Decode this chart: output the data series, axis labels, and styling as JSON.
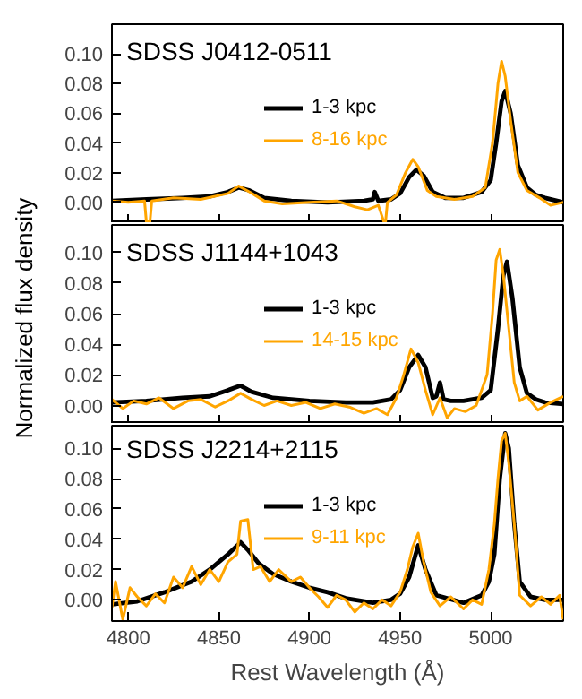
{
  "chart_data": [
    {
      "type": "line",
      "title": "SDSS J0412-0511",
      "xlim": [
        4791,
        5040
      ],
      "xticks": [
        4800,
        4850,
        4900,
        4950,
        5000
      ],
      "ylim": [
        -0.014,
        0.12
      ],
      "yticks": [
        {
          "value": 0,
          "label": "0.00"
        },
        {
          "value": 0.02,
          "label": "0.02"
        },
        {
          "value": 0.04,
          "label": "0.04"
        },
        {
          "value": 0.06,
          "label": "0.06"
        },
        {
          "value": 0.08,
          "label": "0.08"
        },
        {
          "value": 0.1,
          "label": "0.10"
        }
      ],
      "tick_labels": "y",
      "legend": "center",
      "series": [
        {
          "name": "1-3 kpc",
          "color": "#000000",
          "x": [
            4791,
            4810,
            4830,
            4845,
            4855,
            4861,
            4867,
            4875,
            4890,
            4910,
            4930,
            4935,
            4936,
            4938,
            4945,
            4950,
            4955,
            4959,
            4963,
            4968,
            4975,
            4985,
            4995,
            5000,
            5003,
            5006,
            5008,
            5011,
            5015,
            5020,
            5025,
            5030,
            5040
          ],
          "values": [
            0.001,
            0.002,
            0.003,
            0.004,
            0.007,
            0.01,
            0.008,
            0.003,
            0.001,
            0.0,
            0.001,
            0.002,
            0.007,
            0.001,
            0.002,
            0.006,
            0.017,
            0.022,
            0.018,
            0.007,
            0.003,
            0.003,
            0.007,
            0.015,
            0.04,
            0.068,
            0.075,
            0.06,
            0.025,
            0.01,
            0.005,
            0.003,
            0.0
          ]
        },
        {
          "name": "8-16 kpc",
          "color": "#ffa500",
          "x": [
            4791,
            4800,
            4809,
            4810,
            4812,
            4813,
            4825,
            4840,
            4855,
            4861,
            4867,
            4875,
            4885,
            4900,
            4915,
            4925,
            4932,
            4938,
            4941,
            4942,
            4943,
            4948,
            4953,
            4957,
            4960,
            4965,
            4970,
            4980,
            4990,
            4997,
            5001,
            5004,
            5006,
            5008,
            5011,
            5015,
            5020,
            5027,
            5033,
            5040
          ],
          "values": [
            0.001,
            0.0,
            0.001,
            -0.013,
            -0.013,
            0.001,
            0.003,
            0.002,
            0.006,
            0.011,
            0.007,
            0.001,
            -0.001,
            0.0,
            0.001,
            -0.003,
            -0.005,
            -0.002,
            -0.013,
            -0.013,
            0.0,
            0.005,
            0.02,
            0.029,
            0.024,
            0.008,
            0.004,
            0.002,
            0.004,
            0.01,
            0.04,
            0.08,
            0.095,
            0.085,
            0.055,
            0.02,
            0.008,
            0.003,
            -0.002,
            0.0
          ]
        }
      ]
    },
    {
      "type": "line",
      "title": "SDSS J1144+1043",
      "ylabel": "Normalized flux density",
      "xlim": [
        4791,
        5040
      ],
      "xticks": [
        4800,
        4850,
        4900,
        4950,
        5000
      ],
      "ylim": [
        -0.012,
        0.118
      ],
      "yticks": [
        {
          "value": 0,
          "label": "0.00"
        },
        {
          "value": 0.02,
          "label": "0.02"
        },
        {
          "value": 0.04,
          "label": "0.04"
        },
        {
          "value": 0.06,
          "label": "0.06"
        },
        {
          "value": 0.08,
          "label": "0.08"
        },
        {
          "value": 0.1,
          "label": "0.10"
        }
      ],
      "tick_labels": "y",
      "legend": "center",
      "series": [
        {
          "name": "1-3 kpc",
          "color": "#000000",
          "x": [
            4791,
            4810,
            4830,
            4845,
            4855,
            4862,
            4868,
            4880,
            4900,
            4920,
            4935,
            4945,
            4950,
            4955,
            4960,
            4964,
            4968,
            4970,
            4972,
            4974,
            4978,
            4985,
            4995,
            5000,
            5004,
            5007,
            5009,
            5012,
            5016,
            5020,
            5025,
            5030,
            5040
          ],
          "values": [
            0.002,
            0.003,
            0.005,
            0.006,
            0.01,
            0.013,
            0.009,
            0.005,
            0.003,
            0.002,
            0.002,
            0.004,
            0.01,
            0.025,
            0.033,
            0.025,
            0.005,
            0.006,
            0.015,
            0.004,
            0.003,
            0.003,
            0.005,
            0.01,
            0.05,
            0.085,
            0.094,
            0.07,
            0.025,
            0.008,
            0.004,
            0.002,
            0.001
          ]
        },
        {
          "name": "14-15 kpc",
          "color": "#ffa500",
          "x": [
            4791,
            4797,
            4803,
            4810,
            4817,
            4825,
            4833,
            4840,
            4848,
            4855,
            4862,
            4868,
            4875,
            4882,
            4890,
            4898,
            4906,
            4914,
            4922,
            4930,
            4937,
            4943,
            4948,
            4952,
            4956,
            4960,
            4964,
            4968,
            4972,
            4976,
            4980,
            4986,
            4992,
            4998,
            5001,
            5003,
            5005,
            5007,
            5010,
            5013,
            5016,
            5020,
            5026,
            5033,
            5040
          ],
          "values": [
            0.004,
            -0.002,
            0.003,
            0.001,
            0.005,
            -0.002,
            0.003,
            0.004,
            -0.001,
            0.003,
            0.008,
            0.004,
            0.0,
            0.003,
            0.0,
            0.002,
            -0.002,
            0.001,
            -0.001,
            -0.005,
            -0.002,
            -0.006,
            0.005,
            0.02,
            0.037,
            0.028,
            0.01,
            -0.006,
            0.005,
            -0.008,
            -0.002,
            -0.004,
            0.0,
            0.02,
            0.06,
            0.095,
            0.102,
            0.085,
            0.05,
            0.015,
            0.003,
            0.006,
            -0.003,
            0.002,
            0.006
          ]
        }
      ]
    },
    {
      "type": "line",
      "title": "SDSS J2214+2115",
      "xlabel": "Rest Wavelength (Å)",
      "xlim": [
        4791,
        5040
      ],
      "xticks": [
        4800,
        4850,
        4900,
        4950,
        5000
      ],
      "ylim": [
        -0.014,
        0.115
      ],
      "yticks": [
        {
          "value": 0,
          "label": "0.00"
        },
        {
          "value": 0.02,
          "label": "0.02"
        },
        {
          "value": 0.04,
          "label": "0.04"
        },
        {
          "value": 0.06,
          "label": "0.06"
        },
        {
          "value": 0.08,
          "label": "0.08"
        },
        {
          "value": 0.1,
          "label": "0.10"
        }
      ],
      "legend": "center",
      "series": [
        {
          "name": "1-3 kpc",
          "color": "#000000",
          "x": [
            4791,
            4805,
            4820,
            4835,
            4845,
            4855,
            4862,
            4866,
            4872,
            4880,
            4890,
            4900,
            4910,
            4920,
            4935,
            4945,
            4950,
            4955,
            4960,
            4964,
            4970,
            4985,
            4995,
            4999,
            5002,
            5005,
            5008,
            5010,
            5013,
            5016,
            5022,
            5030,
            5040
          ],
          "values": [
            -0.003,
            -0.001,
            0.005,
            0.012,
            0.02,
            0.03,
            0.038,
            0.033,
            0.024,
            0.017,
            0.012,
            0.008,
            0.005,
            0.001,
            -0.002,
            0.0,
            0.004,
            0.015,
            0.036,
            0.02,
            0.003,
            -0.002,
            0.003,
            0.012,
            0.03,
            0.08,
            0.11,
            0.1,
            0.05,
            0.012,
            0.002,
            0.0,
            0.0
          ]
        },
        {
          "name": "9-11 kpc",
          "color": "#ffa500",
          "x": [
            4791,
            4793,
            4797,
            4801,
            4805,
            4810,
            4815,
            4820,
            4825,
            4830,
            4835,
            4840,
            4845,
            4850,
            4855,
            4860,
            4862,
            4866,
            4869,
            4873,
            4878,
            4883,
            4890,
            4895,
            4900,
            4905,
            4910,
            4915,
            4920,
            4925,
            4930,
            4935,
            4940,
            4945,
            4950,
            4954,
            4957,
            4960,
            4963,
            4967,
            4972,
            4978,
            4985,
            4990,
            4995,
            4999,
            5002,
            5004,
            5006,
            5008,
            5010,
            5013,
            5016,
            5022,
            5028,
            5033,
            5038,
            5040
          ],
          "values": [
            -0.005,
            0.012,
            -0.013,
            0.008,
            0.002,
            -0.004,
            0.004,
            -0.002,
            0.015,
            0.008,
            0.022,
            0.01,
            0.02,
            0.012,
            0.025,
            0.03,
            0.052,
            0.053,
            0.02,
            0.022,
            0.012,
            0.02,
            0.012,
            0.015,
            0.008,
            0.002,
            -0.005,
            0.003,
            0.0,
            -0.008,
            -0.002,
            -0.006,
            0.0,
            -0.004,
            0.005,
            0.02,
            0.035,
            0.044,
            0.025,
            0.005,
            -0.004,
            0.002,
            -0.006,
            0.0,
            -0.003,
            0.02,
            0.05,
            0.08,
            0.105,
            0.11,
            0.09,
            0.05,
            0.003,
            -0.004,
            0.002,
            -0.003,
            0.003,
            -0.013
          ]
        }
      ]
    }
  ]
}
